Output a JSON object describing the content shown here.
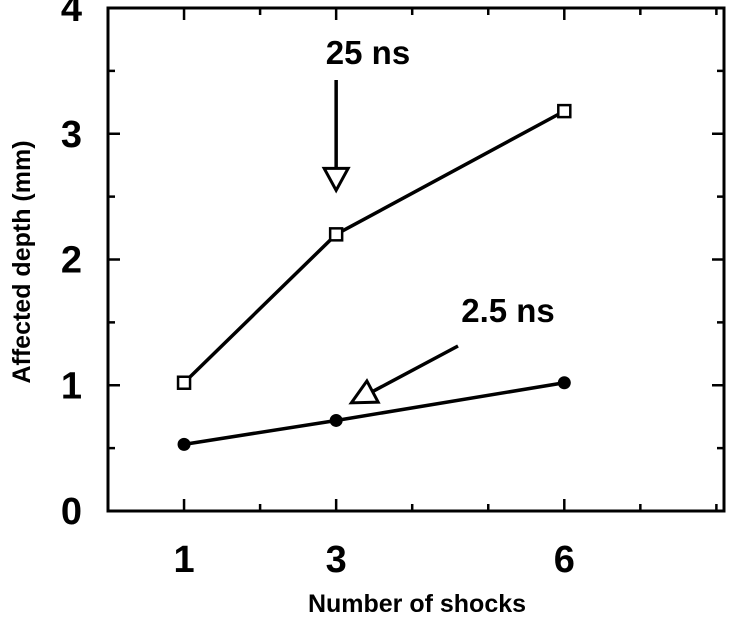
{
  "chart_data": {
    "type": "line",
    "title": "",
    "xlabel": "Number of shocks",
    "ylabel": "Affected depth (mm)",
    "xlim": [
      0.0,
      8.1
    ],
    "ylim": [
      0,
      4
    ],
    "x_ticks": [
      1,
      3,
      6
    ],
    "x_tick_labels": [
      "1",
      "3",
      "6"
    ],
    "y_ticks": [
      0,
      1,
      2,
      3,
      4
    ],
    "y_tick_labels": [
      "0",
      "1",
      "2",
      "3",
      "4"
    ],
    "grid": false,
    "legend": "none",
    "series": [
      {
        "name": "25 ns",
        "marker": "open-square",
        "x": [
          1,
          3,
          6
        ],
        "y": [
          1.02,
          2.2,
          3.18
        ]
      },
      {
        "name": "2.5 ns",
        "marker": "filled-circle",
        "x": [
          1,
          3,
          6
        ],
        "y": [
          0.53,
          0.72,
          1.02
        ]
      }
    ],
    "annotations": [
      {
        "text": "25 ns",
        "series": "25 ns",
        "arrow_target": {
          "x": 3,
          "y": 2.55
        }
      },
      {
        "text": "2.5 ns",
        "series": "2.5 ns",
        "arrow_target": {
          "x": 3.2,
          "y": 0.86
        }
      }
    ]
  }
}
